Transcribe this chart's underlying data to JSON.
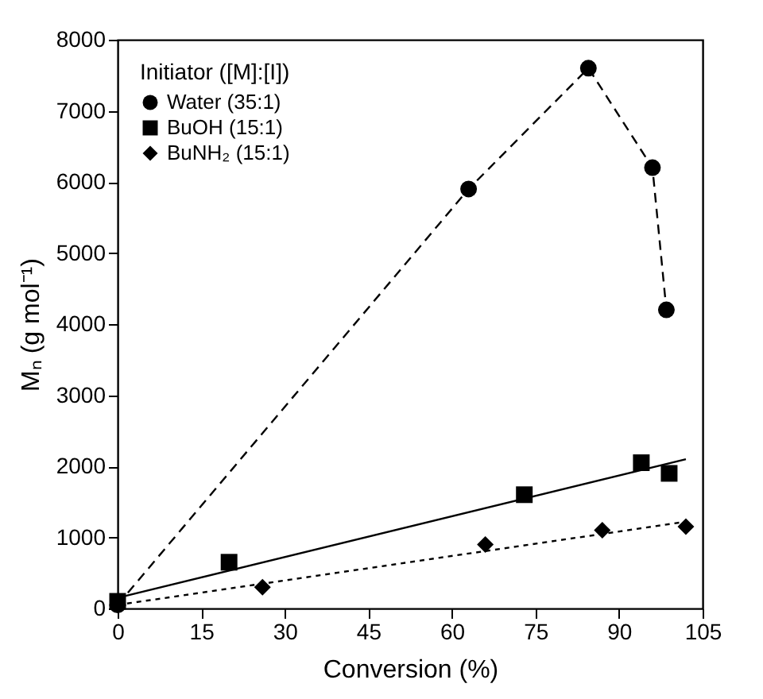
{
  "chart_data": {
    "type": "scatter",
    "xlabel": "Conversion (%)",
    "ylabel": "Mₙ (g mol⁻¹)",
    "legend_title": "Initiator ([M]:[I])",
    "legend": "top left",
    "grid": false,
    "xlim": [
      0,
      105
    ],
    "xticks": [
      0,
      15,
      30,
      45,
      60,
      75,
      90,
      105
    ],
    "ylim": [
      0,
      8000
    ],
    "yticks": [
      0,
      1000,
      2000,
      3000,
      4000,
      5000,
      6000,
      7000,
      8000
    ],
    "series": [
      {
        "name": "Water (35:1)",
        "type": "line",
        "marker": "circle",
        "line_style": "dashed",
        "color": "#000000",
        "x": [
          0,
          63,
          84.5,
          96,
          98.5
        ],
        "values": [
          50,
          5900,
          7600,
          6200,
          4200
        ]
      },
      {
        "name": "BuOH (15:1)",
        "marker": "square",
        "color": "#000000",
        "x": [
          0,
          20,
          73,
          94,
          99
        ],
        "values": [
          100,
          650,
          1600,
          2050,
          1900
        ]
      },
      {
        "name": "BuNH₂ (15:1)",
        "marker": "diamond",
        "color": "#000000",
        "x": [
          26,
          66,
          87,
          102
        ],
        "values": [
          300,
          900,
          1100,
          1150
        ]
      },
      {
        "type": "line",
        "marker": "none",
        "line_style": "solid",
        "color": "#000000",
        "x": [
          0,
          102
        ],
        "values": [
          150,
          2100
        ]
      },
      {
        "type": "line",
        "marker": "none",
        "line_style": "dotted",
        "color": "#000000",
        "x": [
          0,
          102
        ],
        "values": [
          50,
          1220
        ]
      }
    ]
  }
}
